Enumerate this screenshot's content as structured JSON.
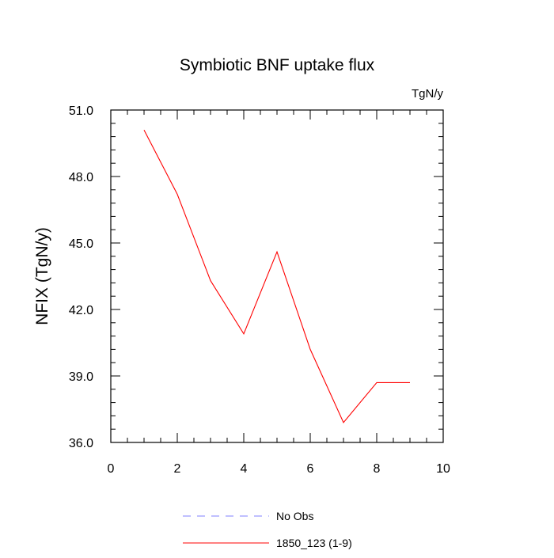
{
  "chart_data": {
    "type": "line",
    "title": "Symbiotic BNF uptake flux",
    "units": "TgN/y",
    "ylabel": "NFIX  (TgN/y)",
    "xlabel": "",
    "xlim": [
      0,
      10
    ],
    "ylim": [
      36.0,
      51.0
    ],
    "x_ticks": [
      0,
      2,
      4,
      6,
      8,
      10
    ],
    "x_tick_labels": [
      "0",
      "2",
      "4",
      "6",
      "8",
      "10"
    ],
    "y_ticks": [
      36.0,
      39.0,
      42.0,
      45.0,
      48.0,
      51.0
    ],
    "y_tick_labels": [
      "36.0",
      "39.0",
      "42.0",
      "45.0",
      "48.0",
      "51.0"
    ],
    "grid": false,
    "legend_position": "bottom",
    "series": [
      {
        "name": "1850_123 (1-9)",
        "color": "#ff0000",
        "x": [
          1,
          2,
          3,
          4,
          5,
          6,
          7,
          8,
          9
        ],
        "y": [
          50.1,
          47.2,
          43.3,
          40.9,
          44.6,
          40.2,
          36.9,
          38.7,
          38.7
        ]
      }
    ],
    "legend": [
      {
        "label": "No Obs",
        "color": "#8080ff",
        "style": "dashed"
      },
      {
        "label": "1850_123 (1-9)",
        "color": "#ff0000",
        "style": "solid"
      }
    ]
  }
}
